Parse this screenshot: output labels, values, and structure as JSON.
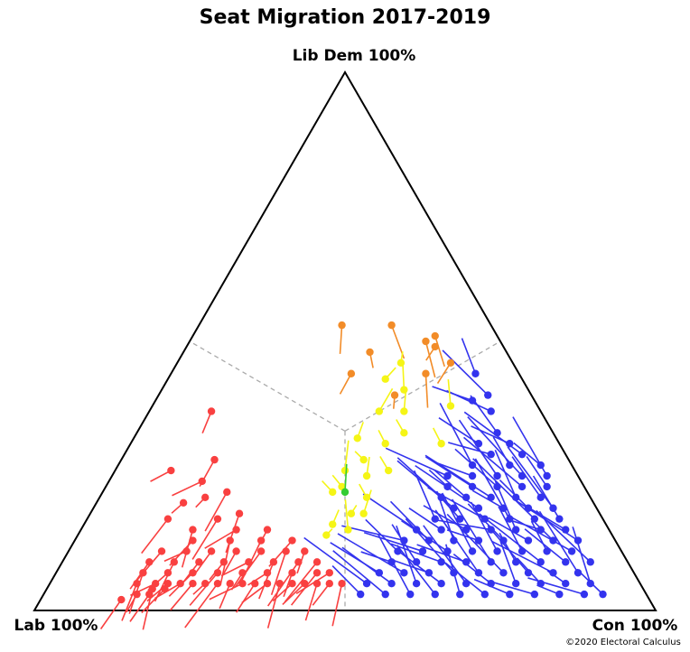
{
  "chart_data": {
    "type": "scatter",
    "subtype": "ternary-migration",
    "title": "Seat Migration 2017-2019",
    "vertex_labels": {
      "top": "Lib Dem 100%",
      "left": "Lab 100%",
      "right": "Con 100%"
    },
    "credit": "©2020 Electoral Calculus",
    "guides": "dashed grey lines from the triangle centre to the midpoint of each side",
    "colors": {
      "lab": "#f94040",
      "con": "#3333ee",
      "ld": "#f28c28",
      "mixed": "#f5f516",
      "green": "#33cc33",
      "guide": "#aaaaaa"
    },
    "encoding": "each seat is a line segment from its 2017 position to its 2019 position (dot); position = share of Lab / Con / Lib Dem among these three parties; colour = 2019 winner",
    "series": [
      {
        "name": "lab",
        "seats_2019": [
          [
            0.85,
            0.13,
            0.02
          ],
          [
            0.82,
            0.15,
            0.03
          ],
          [
            0.8,
            0.17,
            0.03
          ],
          [
            0.79,
            0.17,
            0.04
          ],
          [
            0.77,
            0.19,
            0.04
          ],
          [
            0.81,
            0.14,
            0.05
          ],
          [
            0.78,
            0.17,
            0.05
          ],
          [
            0.76,
            0.19,
            0.05
          ],
          [
            0.74,
            0.21,
            0.05
          ],
          [
            0.72,
            0.23,
            0.05
          ],
          [
            0.7,
            0.25,
            0.05
          ],
          [
            0.68,
            0.27,
            0.05
          ],
          [
            0.66,
            0.29,
            0.05
          ],
          [
            0.64,
            0.31,
            0.05
          ],
          [
            0.62,
            0.33,
            0.05
          ],
          [
            0.6,
            0.35,
            0.05
          ],
          [
            0.58,
            0.37,
            0.05
          ],
          [
            0.56,
            0.39,
            0.05
          ],
          [
            0.54,
            0.41,
            0.05
          ],
          [
            0.52,
            0.43,
            0.05
          ],
          [
            0.5,
            0.45,
            0.05
          ],
          [
            0.48,
            0.47,
            0.05
          ],
          [
            0.79,
            0.14,
            0.07
          ],
          [
            0.75,
            0.18,
            0.07
          ],
          [
            0.71,
            0.22,
            0.07
          ],
          [
            0.67,
            0.26,
            0.07
          ],
          [
            0.63,
            0.3,
            0.07
          ],
          [
            0.59,
            0.34,
            0.07
          ],
          [
            0.55,
            0.38,
            0.07
          ],
          [
            0.51,
            0.42,
            0.07
          ],
          [
            0.49,
            0.44,
            0.07
          ],
          [
            0.77,
            0.14,
            0.09
          ],
          [
            0.73,
            0.18,
            0.09
          ],
          [
            0.69,
            0.22,
            0.09
          ],
          [
            0.65,
            0.26,
            0.09
          ],
          [
            0.61,
            0.3,
            0.09
          ],
          [
            0.57,
            0.34,
            0.09
          ],
          [
            0.53,
            0.38,
            0.09
          ],
          [
            0.5,
            0.41,
            0.09
          ],
          [
            0.74,
            0.15,
            0.11
          ],
          [
            0.7,
            0.19,
            0.11
          ],
          [
            0.66,
            0.23,
            0.11
          ],
          [
            0.62,
            0.27,
            0.11
          ],
          [
            0.58,
            0.31,
            0.11
          ],
          [
            0.54,
            0.35,
            0.11
          ],
          [
            0.51,
            0.38,
            0.11
          ],
          [
            0.68,
            0.19,
            0.13
          ],
          [
            0.62,
            0.25,
            0.13
          ],
          [
            0.57,
            0.3,
            0.13
          ],
          [
            0.52,
            0.35,
            0.13
          ],
          [
            0.67,
            0.18,
            0.15
          ],
          [
            0.6,
            0.25,
            0.15
          ],
          [
            0.55,
            0.3,
            0.15
          ],
          [
            0.7,
            0.13,
            0.17
          ],
          [
            0.62,
            0.21,
            0.17
          ],
          [
            0.58,
            0.24,
            0.18
          ],
          [
            0.66,
            0.14,
            0.2
          ],
          [
            0.62,
            0.17,
            0.21
          ],
          [
            0.58,
            0.2,
            0.22
          ],
          [
            0.61,
            0.15,
            0.24
          ],
          [
            0.65,
            0.09,
            0.26
          ],
          [
            0.57,
            0.15,
            0.28
          ],
          [
            0.53,
            0.1,
            0.37
          ]
        ]
      },
      {
        "name": "con",
        "seats_2019": [
          [
            0.07,
            0.9,
            0.03
          ],
          [
            0.1,
            0.87,
            0.03
          ],
          [
            0.14,
            0.83,
            0.03
          ],
          [
            0.18,
            0.79,
            0.03
          ],
          [
            0.22,
            0.75,
            0.03
          ],
          [
            0.26,
            0.71,
            0.03
          ],
          [
            0.3,
            0.67,
            0.03
          ],
          [
            0.34,
            0.63,
            0.03
          ],
          [
            0.38,
            0.59,
            0.03
          ],
          [
            0.42,
            0.55,
            0.03
          ],
          [
            0.46,
            0.51,
            0.03
          ],
          [
            0.08,
            0.87,
            0.05
          ],
          [
            0.12,
            0.83,
            0.05
          ],
          [
            0.16,
            0.79,
            0.05
          ],
          [
            0.2,
            0.75,
            0.05
          ],
          [
            0.24,
            0.71,
            0.05
          ],
          [
            0.28,
            0.67,
            0.05
          ],
          [
            0.32,
            0.63,
            0.05
          ],
          [
            0.36,
            0.59,
            0.05
          ],
          [
            0.4,
            0.55,
            0.05
          ],
          [
            0.44,
            0.51,
            0.05
          ],
          [
            0.09,
            0.84,
            0.07
          ],
          [
            0.13,
            0.8,
            0.07
          ],
          [
            0.17,
            0.76,
            0.07
          ],
          [
            0.21,
            0.72,
            0.07
          ],
          [
            0.25,
            0.68,
            0.07
          ],
          [
            0.29,
            0.64,
            0.07
          ],
          [
            0.33,
            0.6,
            0.07
          ],
          [
            0.37,
            0.56,
            0.07
          ],
          [
            0.41,
            0.52,
            0.07
          ],
          [
            0.06,
            0.85,
            0.09
          ],
          [
            0.1,
            0.81,
            0.09
          ],
          [
            0.14,
            0.77,
            0.09
          ],
          [
            0.18,
            0.73,
            0.09
          ],
          [
            0.22,
            0.69,
            0.09
          ],
          [
            0.26,
            0.65,
            0.09
          ],
          [
            0.3,
            0.61,
            0.09
          ],
          [
            0.34,
            0.57,
            0.09
          ],
          [
            0.38,
            0.53,
            0.09
          ],
          [
            0.08,
            0.81,
            0.11
          ],
          [
            0.12,
            0.77,
            0.11
          ],
          [
            0.16,
            0.73,
            0.11
          ],
          [
            0.2,
            0.69,
            0.11
          ],
          [
            0.24,
            0.65,
            0.11
          ],
          [
            0.28,
            0.61,
            0.11
          ],
          [
            0.32,
            0.57,
            0.11
          ],
          [
            0.36,
            0.53,
            0.11
          ],
          [
            0.06,
            0.81,
            0.13
          ],
          [
            0.1,
            0.77,
            0.13
          ],
          [
            0.14,
            0.73,
            0.13
          ],
          [
            0.18,
            0.69,
            0.13
          ],
          [
            0.22,
            0.65,
            0.13
          ],
          [
            0.26,
            0.61,
            0.13
          ],
          [
            0.3,
            0.57,
            0.13
          ],
          [
            0.34,
            0.53,
            0.13
          ],
          [
            0.07,
            0.78,
            0.15
          ],
          [
            0.11,
            0.74,
            0.15
          ],
          [
            0.15,
            0.7,
            0.15
          ],
          [
            0.19,
            0.66,
            0.15
          ],
          [
            0.23,
            0.62,
            0.15
          ],
          [
            0.27,
            0.58,
            0.15
          ],
          [
            0.31,
            0.54,
            0.15
          ],
          [
            0.07,
            0.76,
            0.17
          ],
          [
            0.11,
            0.72,
            0.17
          ],
          [
            0.15,
            0.68,
            0.17
          ],
          [
            0.19,
            0.64,
            0.17
          ],
          [
            0.23,
            0.6,
            0.17
          ],
          [
            0.27,
            0.56,
            0.17
          ],
          [
            0.07,
            0.74,
            0.19
          ],
          [
            0.11,
            0.7,
            0.19
          ],
          [
            0.15,
            0.66,
            0.19
          ],
          [
            0.19,
            0.62,
            0.19
          ],
          [
            0.23,
            0.58,
            0.19
          ],
          [
            0.08,
            0.71,
            0.21
          ],
          [
            0.12,
            0.67,
            0.21
          ],
          [
            0.16,
            0.63,
            0.21
          ],
          [
            0.2,
            0.59,
            0.21
          ],
          [
            0.24,
            0.55,
            0.21
          ],
          [
            0.06,
            0.71,
            0.23
          ],
          [
            0.1,
            0.67,
            0.23
          ],
          [
            0.14,
            0.63,
            0.23
          ],
          [
            0.18,
            0.59,
            0.23
          ],
          [
            0.22,
            0.55,
            0.23
          ],
          [
            0.05,
            0.7,
            0.25
          ],
          [
            0.09,
            0.66,
            0.25
          ],
          [
            0.13,
            0.62,
            0.25
          ],
          [
            0.17,
            0.58,
            0.25
          ],
          [
            0.21,
            0.54,
            0.25
          ],
          [
            0.05,
            0.68,
            0.27
          ],
          [
            0.1,
            0.63,
            0.27
          ],
          [
            0.16,
            0.57,
            0.27
          ],
          [
            0.07,
            0.64,
            0.29
          ],
          [
            0.12,
            0.59,
            0.29
          ],
          [
            0.08,
            0.61,
            0.31
          ],
          [
            0.13,
            0.56,
            0.31
          ],
          [
            0.09,
            0.58,
            0.33
          ],
          [
            0.08,
            0.55,
            0.37
          ],
          [
            0.07,
            0.53,
            0.4
          ],
          [
            0.1,
            0.51,
            0.39
          ],
          [
            0.07,
            0.49,
            0.44
          ]
        ]
      },
      {
        "name": "ld",
        "seats_2019": [
          [
            0.22,
            0.38,
            0.4
          ],
          [
            0.22,
            0.3,
            0.48
          ],
          [
            0.27,
            0.29,
            0.44
          ],
          [
            0.24,
            0.23,
            0.53
          ],
          [
            0.16,
            0.31,
            0.53
          ],
          [
            0.11,
            0.4,
            0.49
          ],
          [
            0.12,
            0.38,
            0.5
          ],
          [
            0.1,
            0.39,
            0.51
          ],
          [
            0.15,
            0.41,
            0.44
          ],
          [
            0.1,
            0.44,
            0.46
          ]
        ]
      },
      {
        "name": "mixed",
        "seats_2019": [
          [
            0.46,
            0.4,
            0.14
          ],
          [
            0.44,
            0.4,
            0.16
          ],
          [
            0.42,
            0.43,
            0.15
          ],
          [
            0.4,
            0.42,
            0.18
          ],
          [
            0.38,
            0.44,
            0.18
          ],
          [
            0.41,
            0.37,
            0.22
          ],
          [
            0.36,
            0.43,
            0.21
          ],
          [
            0.39,
            0.38,
            0.23
          ],
          [
            0.34,
            0.41,
            0.25
          ],
          [
            0.37,
            0.37,
            0.26
          ],
          [
            0.3,
            0.44,
            0.26
          ],
          [
            0.33,
            0.39,
            0.28
          ],
          [
            0.28,
            0.41,
            0.31
          ],
          [
            0.24,
            0.43,
            0.33
          ],
          [
            0.19,
            0.5,
            0.31
          ],
          [
            0.14,
            0.48,
            0.38
          ],
          [
            0.22,
            0.41,
            0.37
          ],
          [
            0.26,
            0.37,
            0.37
          ],
          [
            0.2,
            0.39,
            0.41
          ],
          [
            0.18,
            0.36,
            0.46
          ],
          [
            0.22,
            0.35,
            0.43
          ],
          [
            0.32,
            0.36,
            0.32
          ]
        ]
      },
      {
        "name": "green",
        "seats_2019": [
          [
            0.39,
            0.39,
            0.22
          ]
        ]
      }
    ]
  }
}
